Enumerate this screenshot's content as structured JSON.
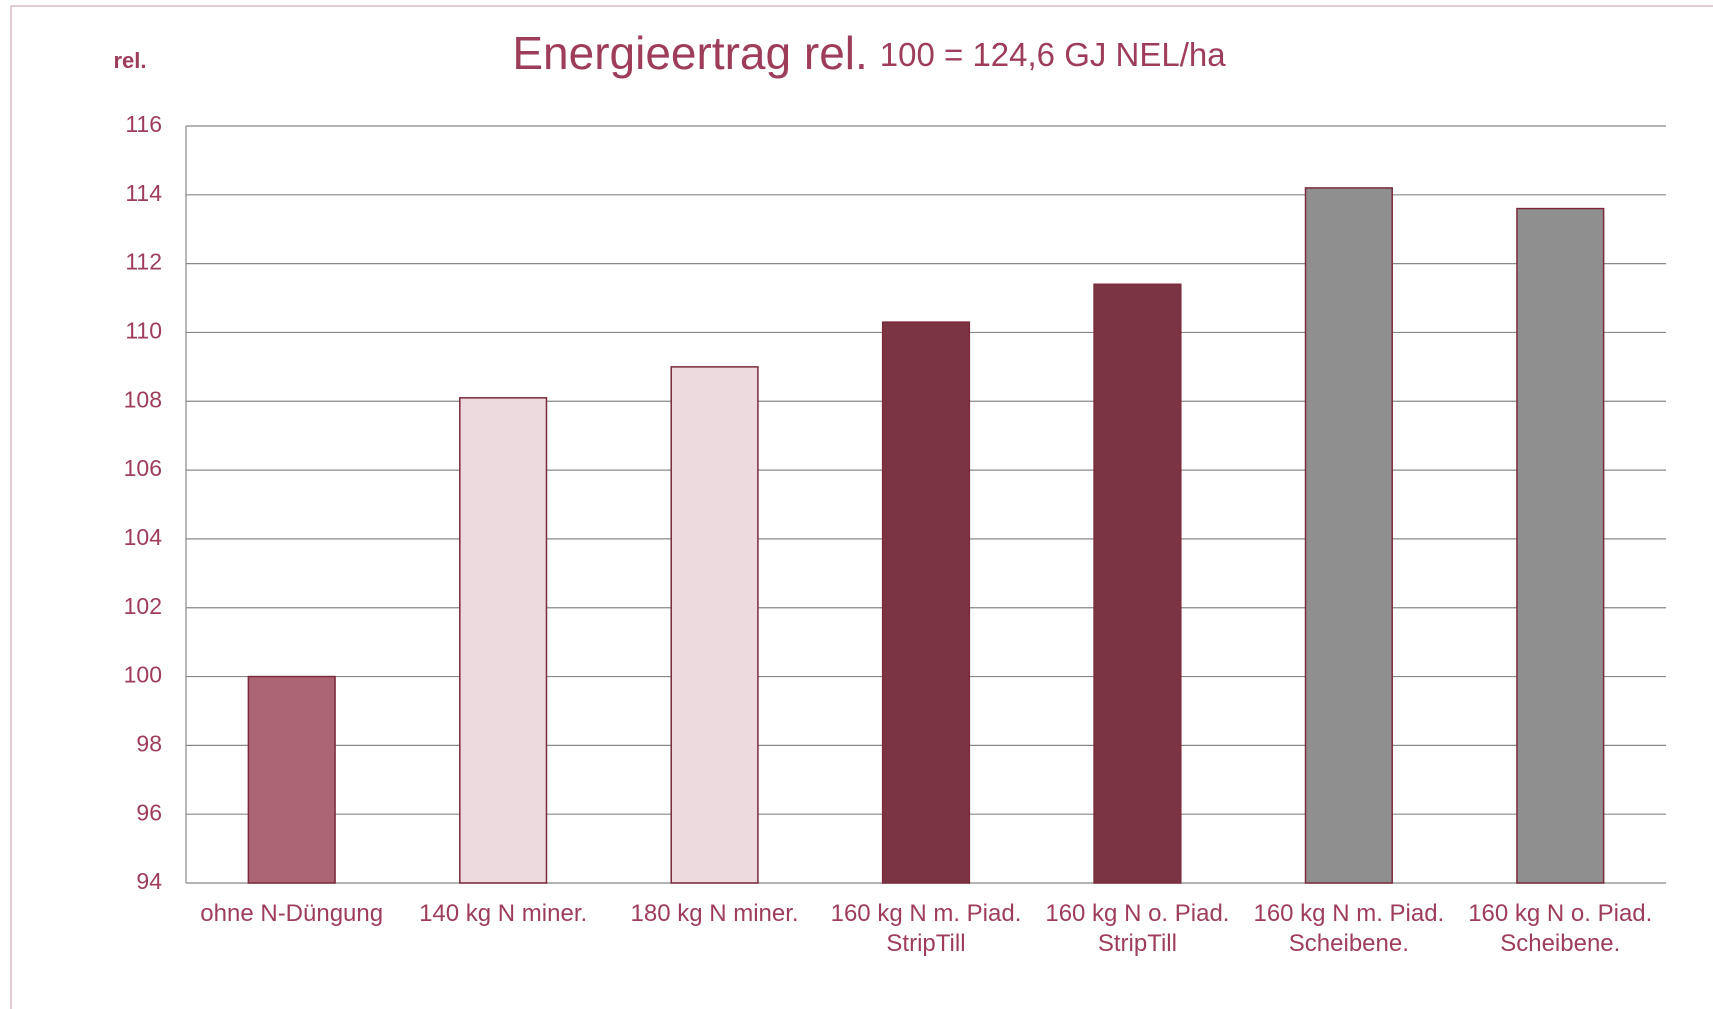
{
  "chart_data": {
    "type": "bar",
    "title": "Energieertrag rel.",
    "subtitle": "100 = 124,6 GJ NEL/ha",
    "y_label": "rel.",
    "categories": [
      "ohne N-Düngung",
      "140 kg N miner.",
      "180 kg N miner.",
      "160 kg N m. Piad. StripTill",
      "160 kg N o. Piad. StripTill",
      "160 kg N m. Piad. Scheibene.",
      "160 kg N o. Piad. Scheibene."
    ],
    "values": [
      100,
      108.1,
      109,
      110.3,
      111.4,
      114.2,
      113.6
    ],
    "colors": [
      "#ac6673",
      "#ecdadf",
      "#ecdadf",
      "#7a3444",
      "#7a3444",
      "#8f8f8f",
      "#8f8f8f"
    ],
    "ylim": [
      94,
      116
    ],
    "yticks": [
      94,
      96,
      98,
      100,
      102,
      104,
      106,
      108,
      110,
      112,
      114,
      116
    ],
    "grid": true
  }
}
